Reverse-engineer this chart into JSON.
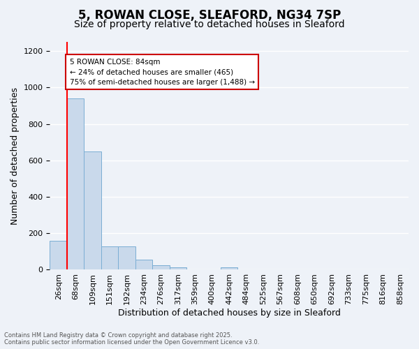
{
  "title_line1": "5, ROWAN CLOSE, SLEAFORD, NG34 7SP",
  "title_line2": "Size of property relative to detached houses in Sleaford",
  "xlabel": "Distribution of detached houses by size in Sleaford",
  "ylabel": "Number of detached properties",
  "bar_color": "#c9d9eb",
  "bar_edge_color": "#7aaed4",
  "bar_heights": [
    160,
    940,
    650,
    130,
    130,
    55,
    25,
    12,
    0,
    0,
    12,
    0,
    0,
    0,
    0,
    0,
    0,
    0,
    0,
    0,
    0
  ],
  "bin_labels": [
    "26sqm",
    "68sqm",
    "109sqm",
    "151sqm",
    "192sqm",
    "234sqm",
    "276sqm",
    "317sqm",
    "359sqm",
    "400sqm",
    "442sqm",
    "484sqm",
    "525sqm",
    "567sqm",
    "608sqm",
    "650sqm",
    "692sqm",
    "733sqm",
    "775sqm",
    "816sqm",
    "858sqm"
  ],
  "ylim": [
    0,
    1250
  ],
  "yticks": [
    0,
    200,
    400,
    600,
    800,
    1000,
    1200
  ],
  "red_line_x": 1.0,
  "annotation_text": "5 ROWAN CLOSE: 84sqm\n← 24% of detached houses are smaller (465)\n75% of semi-detached houses are larger (1,488) →",
  "annotation_box_color": "#ffffff",
  "annotation_box_edge": "#cc0000",
  "footer_line1": "Contains HM Land Registry data © Crown copyright and database right 2025.",
  "footer_line2": "Contains public sector information licensed under the Open Government Licence v3.0.",
  "background_color": "#eef2f8",
  "grid_color": "#ffffff",
  "title_fontsize": 12,
  "subtitle_fontsize": 10,
  "axis_label_fontsize": 9,
  "tick_fontsize": 8
}
